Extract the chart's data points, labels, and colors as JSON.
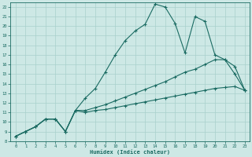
{
  "title": "",
  "xlabel": "Humidex (Indice chaleur)",
  "background_color": "#cde8e5",
  "line_color": "#1a6b62",
  "grid_color": "#a8d0cc",
  "xlim": [
    -0.5,
    23.5
  ],
  "ylim": [
    8,
    22.5
  ],
  "xticks": [
    0,
    1,
    2,
    3,
    4,
    5,
    6,
    7,
    8,
    9,
    10,
    11,
    12,
    13,
    14,
    15,
    16,
    17,
    18,
    19,
    20,
    21,
    22,
    23
  ],
  "yticks": [
    8,
    9,
    10,
    11,
    12,
    13,
    14,
    15,
    16,
    17,
    18,
    19,
    20,
    21,
    22
  ],
  "line1_x": [
    0,
    1,
    2,
    3,
    4,
    5,
    6,
    7,
    8,
    9,
    10,
    11,
    12,
    13,
    14,
    15,
    16,
    17,
    18,
    19,
    20,
    21,
    22,
    23
  ],
  "line1_y": [
    8.5,
    9.0,
    9.5,
    10.3,
    10.3,
    9.0,
    11.2,
    12.5,
    13.5,
    15.2,
    17.0,
    18.5,
    19.5,
    20.2,
    22.3,
    22.0,
    20.3,
    17.2,
    21.0,
    20.5,
    17.0,
    16.5,
    15.0,
    13.3
  ],
  "line2_x": [
    0,
    1,
    2,
    3,
    4,
    5,
    6,
    7,
    8,
    9,
    10,
    11,
    12,
    13,
    14,
    15,
    16,
    17,
    18,
    19,
    20,
    21,
    22,
    23
  ],
  "line2_y": [
    8.5,
    9.0,
    9.5,
    10.3,
    10.3,
    9.0,
    11.2,
    11.2,
    11.5,
    11.8,
    12.2,
    12.6,
    13.0,
    13.4,
    13.8,
    14.2,
    14.7,
    15.2,
    15.5,
    16.0,
    16.5,
    16.5,
    15.8,
    13.3
  ],
  "line3_x": [
    0,
    1,
    2,
    3,
    4,
    5,
    6,
    7,
    8,
    9,
    10,
    11,
    12,
    13,
    14,
    15,
    16,
    17,
    18,
    19,
    20,
    21,
    22,
    23
  ],
  "line3_y": [
    8.5,
    9.0,
    9.5,
    10.3,
    10.3,
    9.0,
    11.2,
    11.0,
    11.2,
    11.3,
    11.5,
    11.7,
    11.9,
    12.1,
    12.3,
    12.5,
    12.7,
    12.9,
    13.1,
    13.3,
    13.5,
    13.6,
    13.7,
    13.3
  ]
}
